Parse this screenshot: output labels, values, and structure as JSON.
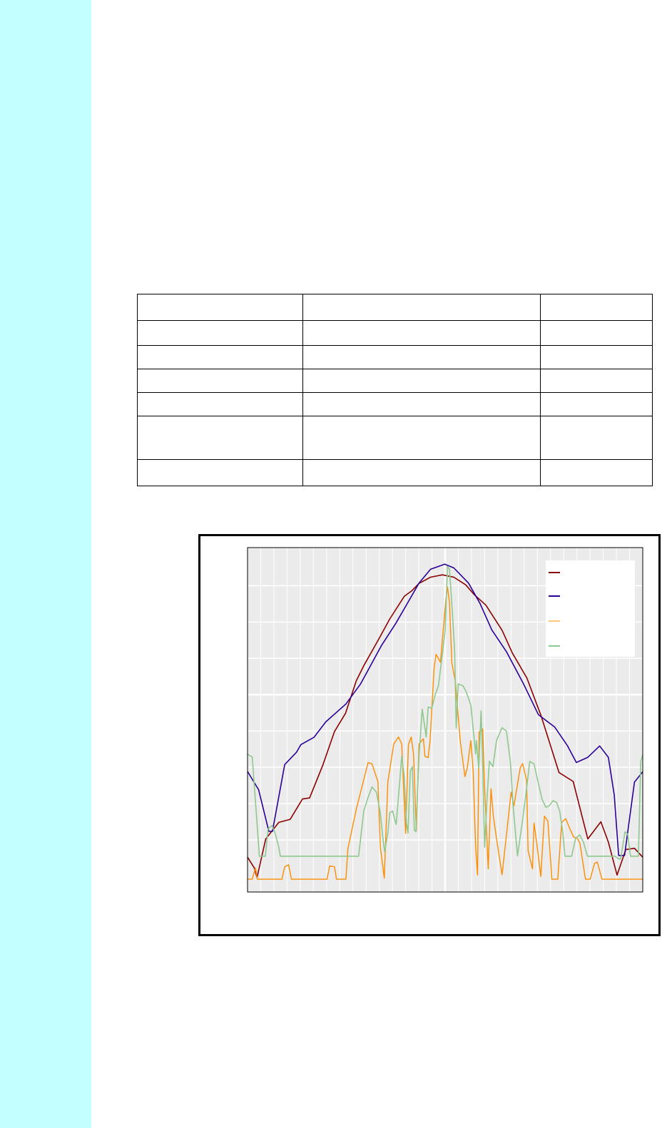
{
  "sidebar": {
    "color": "#c4ffff"
  },
  "table": {
    "rows": [
      [
        "",
        "",
        ""
      ],
      [
        "",
        "",
        ""
      ],
      [
        "",
        "",
        ""
      ],
      [
        "",
        "",
        ""
      ],
      [
        "",
        "",
        ""
      ],
      [
        "",
        "",
        ""
      ],
      [
        "",
        "",
        ""
      ]
    ]
  },
  "chart_data": {
    "type": "line",
    "title": "",
    "xlabel": "",
    "ylabel": "",
    "xlim": [
      0,
      100
    ],
    "ylim": [
      0,
      100
    ],
    "grid": true,
    "background": "#ebebeb",
    "legend": {
      "placement": "top-right",
      "entries": [
        "",
        "",
        "",
        ""
      ]
    },
    "series": [
      {
        "color": "#8b0000",
        "points": [
          [
            0,
            10.1
          ],
          [
            1.7,
            7.0
          ],
          [
            2.4,
            4.2
          ],
          [
            4.6,
            15.4
          ],
          [
            7.9,
            20.2
          ],
          [
            10.8,
            21.1
          ],
          [
            13.9,
            27.0
          ],
          [
            15.7,
            27.3
          ],
          [
            19.0,
            36.7
          ],
          [
            22.0,
            46.6
          ],
          [
            24.8,
            51.9
          ],
          [
            27.5,
            61.3
          ],
          [
            29.4,
            65.7
          ],
          [
            33.0,
            73.0
          ],
          [
            36.0,
            79.3
          ],
          [
            39.7,
            85.9
          ],
          [
            41.5,
            87.4
          ],
          [
            43.4,
            89.6
          ],
          [
            46.3,
            91.4
          ],
          [
            49.3,
            92.1
          ],
          [
            52.2,
            91.4
          ],
          [
            55.2,
            89.2
          ],
          [
            57.4,
            86.3
          ],
          [
            60.3,
            83.3
          ],
          [
            64.4,
            76.0
          ],
          [
            67.0,
            69.4
          ],
          [
            70.7,
            62.1
          ],
          [
            74.3,
            51.1
          ],
          [
            78.8,
            34.7
          ],
          [
            82.4,
            32.1
          ],
          [
            86.1,
            15.4
          ],
          [
            89.4,
            20.4
          ],
          [
            91.3,
            14.5
          ],
          [
            93.5,
            4.9
          ],
          [
            95.7,
            12.3
          ],
          [
            97.9,
            12.7
          ],
          [
            100,
            10.1
          ]
        ]
      },
      {
        "color": "#2a0096",
        "points": [
          [
            0,
            35.0
          ],
          [
            2.8,
            29.7
          ],
          [
            5.4,
            17.6
          ],
          [
            6.3,
            17.6
          ],
          [
            9.4,
            37.0
          ],
          [
            12.4,
            40.6
          ],
          [
            13.5,
            42.8
          ],
          [
            16.8,
            44.9
          ],
          [
            19.8,
            49.4
          ],
          [
            24.9,
            54.6
          ],
          [
            28.6,
            60.4
          ],
          [
            33.8,
            71.4
          ],
          [
            37.5,
            78.0
          ],
          [
            41.2,
            85.3
          ],
          [
            43.4,
            89.7
          ],
          [
            46.3,
            93.7
          ],
          [
            49.9,
            95.2
          ],
          [
            52.2,
            94.1
          ],
          [
            55.9,
            89.7
          ],
          [
            58.8,
            83.8
          ],
          [
            61.8,
            76.1
          ],
          [
            65.5,
            69.8
          ],
          [
            69.9,
            60.3
          ],
          [
            73.6,
            51.5
          ],
          [
            77.7,
            47.9
          ],
          [
            81.0,
            42.4
          ],
          [
            83.2,
            37.6
          ],
          [
            86.1,
            39.1
          ],
          [
            89.1,
            42.4
          ],
          [
            91.3,
            39.1
          ],
          [
            92.8,
            28.1
          ],
          [
            93.9,
            10.6
          ],
          [
            95.4,
            10.6
          ],
          [
            97.9,
            31.9
          ],
          [
            100,
            34.9
          ]
        ]
      },
      {
        "color": "#ff8c00",
        "points": [
          [
            0,
            3.7
          ],
          [
            1.2,
            3.7
          ],
          [
            2.0,
            7
          ],
          [
            2.5,
            3.7
          ],
          [
            8.7,
            3.7
          ],
          [
            9.4,
            7.3
          ],
          [
            10.4,
            7.9
          ],
          [
            11.1,
            3.7
          ],
          [
            20.1,
            3.7
          ],
          [
            20.8,
            7.6
          ],
          [
            22.0,
            7.3
          ],
          [
            22.5,
            3.7
          ],
          [
            24.9,
            3.7
          ],
          [
            25.4,
            12.6
          ],
          [
            27.5,
            24
          ],
          [
            30.5,
            37.6
          ],
          [
            31.5,
            37.2
          ],
          [
            33.0,
            32
          ],
          [
            33.6,
            13.2
          ],
          [
            34.6,
            4.0
          ],
          [
            35.5,
            32
          ],
          [
            37.0,
            43
          ],
          [
            38.2,
            45
          ],
          [
            39.0,
            43
          ],
          [
            40.0,
            17
          ],
          [
            40.7,
            42.8
          ],
          [
            41.4,
            45.0
          ],
          [
            42.0,
            40
          ],
          [
            42.7,
            17.8
          ],
          [
            43.4,
            43
          ],
          [
            44.5,
            44.5
          ],
          [
            44.9,
            39.4
          ],
          [
            45.7,
            39.0
          ],
          [
            46.2,
            44
          ],
          [
            47.2,
            65
          ],
          [
            47.7,
            69.0
          ],
          [
            48.8,
            66.7
          ],
          [
            50.2,
            85
          ],
          [
            50.6,
            88.5
          ],
          [
            51.1,
            84
          ],
          [
            51.7,
            66.5
          ],
          [
            52.6,
            61
          ],
          [
            53.8,
            44
          ],
          [
            55.0,
            33.5
          ],
          [
            55.6,
            36
          ],
          [
            56.5,
            44
          ],
          [
            57.1,
            35
          ],
          [
            57.7,
            13.2
          ],
          [
            58.2,
            4.9
          ],
          [
            58.6,
            46.5
          ],
          [
            59.5,
            47.4
          ],
          [
            60.0,
            30
          ],
          [
            60.9,
            6.7
          ],
          [
            61.6,
            30
          ],
          [
            62.2,
            22
          ],
          [
            63.2,
            14
          ],
          [
            64.4,
            5.0
          ],
          [
            66.7,
            29
          ],
          [
            67.4,
            25
          ],
          [
            69.0,
            36.1
          ],
          [
            69.6,
            37.3
          ],
          [
            70.6,
            32.5
          ],
          [
            71.0,
            12
          ],
          [
            72.1,
            6.7
          ],
          [
            72.5,
            20
          ],
          [
            73.2,
            14
          ],
          [
            74.2,
            4.5
          ],
          [
            75.1,
            22
          ],
          [
            76.0,
            20.6
          ],
          [
            77.0,
            3.7
          ],
          [
            78.5,
            3.7
          ],
          [
            79.5,
            20.2
          ],
          [
            80.5,
            21.3
          ],
          [
            81.5,
            18.5
          ],
          [
            82.5,
            16
          ],
          [
            83.5,
            15.5
          ],
          [
            84.1,
            14.2
          ],
          [
            85.5,
            3.7
          ],
          [
            86.7,
            3.7
          ],
          [
            87.8,
            8.3
          ],
          [
            88.5,
            8.7
          ],
          [
            89.7,
            3.7
          ],
          [
            100,
            3.7
          ]
        ]
      },
      {
        "color": "#8fc88f",
        "points": [
          [
            0,
            40
          ],
          [
            1.2,
            39.2
          ],
          [
            3.0,
            10.4
          ],
          [
            4.5,
            10.4
          ],
          [
            5.2,
            18.3
          ],
          [
            6.2,
            19.3
          ],
          [
            7.0,
            17.0
          ],
          [
            7.9,
            13
          ],
          [
            8.3,
            10.4
          ],
          [
            28.1,
            10.4
          ],
          [
            29.4,
            23.5
          ],
          [
            30.5,
            27.5
          ],
          [
            31.5,
            30.5
          ],
          [
            32.6,
            29.0
          ],
          [
            33.6,
            23
          ],
          [
            34.2,
            16
          ],
          [
            34.7,
            11.7
          ],
          [
            35.5,
            17.2
          ],
          [
            36.0,
            23
          ],
          [
            36.7,
            23.5
          ],
          [
            37.6,
            19.6
          ],
          [
            38.5,
            32
          ],
          [
            39.0,
            39.4
          ],
          [
            39.7,
            33
          ],
          [
            40.2,
            20
          ],
          [
            40.6,
            17.1
          ],
          [
            41.2,
            35.1
          ],
          [
            41.7,
            36.4
          ],
          [
            42.2,
            18
          ],
          [
            42.6,
            17.5
          ],
          [
            43.4,
            39.5
          ],
          [
            44.2,
            53.1
          ],
          [
            45.2,
            45.0
          ],
          [
            45.7,
            53.7
          ],
          [
            46.6,
            53.4
          ],
          [
            47.5,
            57.3
          ],
          [
            48.3,
            59.9
          ],
          [
            49.4,
            70
          ],
          [
            50.0,
            76
          ],
          [
            50.6,
            94.5
          ],
          [
            51.1,
            93.7
          ],
          [
            51.9,
            80
          ],
          [
            52.4,
            70
          ],
          [
            52.8,
            47.6
          ],
          [
            53.3,
            60.4
          ],
          [
            54.5,
            59.9
          ],
          [
            55.3,
            58.2
          ],
          [
            56.5,
            54.3
          ],
          [
            57.7,
            40.1
          ],
          [
            57.9,
            44
          ],
          [
            58.5,
            36
          ],
          [
            59.1,
            52.6
          ],
          [
            59.5,
            37
          ],
          [
            60.0,
            13
          ],
          [
            60.6,
            27
          ],
          [
            61.2,
            38
          ],
          [
            62.1,
            36.4
          ],
          [
            63.0,
            44
          ],
          [
            64.4,
            47.7
          ],
          [
            65.5,
            46.7
          ],
          [
            66.5,
            38
          ],
          [
            67.2,
            25
          ],
          [
            68.3,
            10.5
          ],
          [
            69.5,
            20
          ],
          [
            70.5,
            29
          ],
          [
            71.4,
            37.9
          ],
          [
            72.5,
            37.2
          ],
          [
            73.5,
            32
          ],
          [
            74.5,
            27
          ],
          [
            75.5,
            24.6
          ],
          [
            76.3,
            25
          ],
          [
            77.3,
            26.5
          ],
          [
            78.2,
            26
          ],
          [
            79.0,
            23.4
          ],
          [
            79.8,
            17
          ],
          [
            80.3,
            10.4
          ],
          [
            82.0,
            10.4
          ],
          [
            83.0,
            15.5
          ],
          [
            84.0,
            16.6
          ],
          [
            85.0,
            14.5
          ],
          [
            86.0,
            10.4
          ],
          [
            93.0,
            10.4
          ],
          [
            93.9,
            9.6
          ],
          [
            94.4,
            9.6
          ],
          [
            95.5,
            17.5
          ],
          [
            96.2,
            16.8
          ],
          [
            96.9,
            10.4
          ],
          [
            98.9,
            10.4
          ],
          [
            99.5,
            37.9
          ],
          [
            100,
            39.8
          ]
        ]
      }
    ]
  }
}
